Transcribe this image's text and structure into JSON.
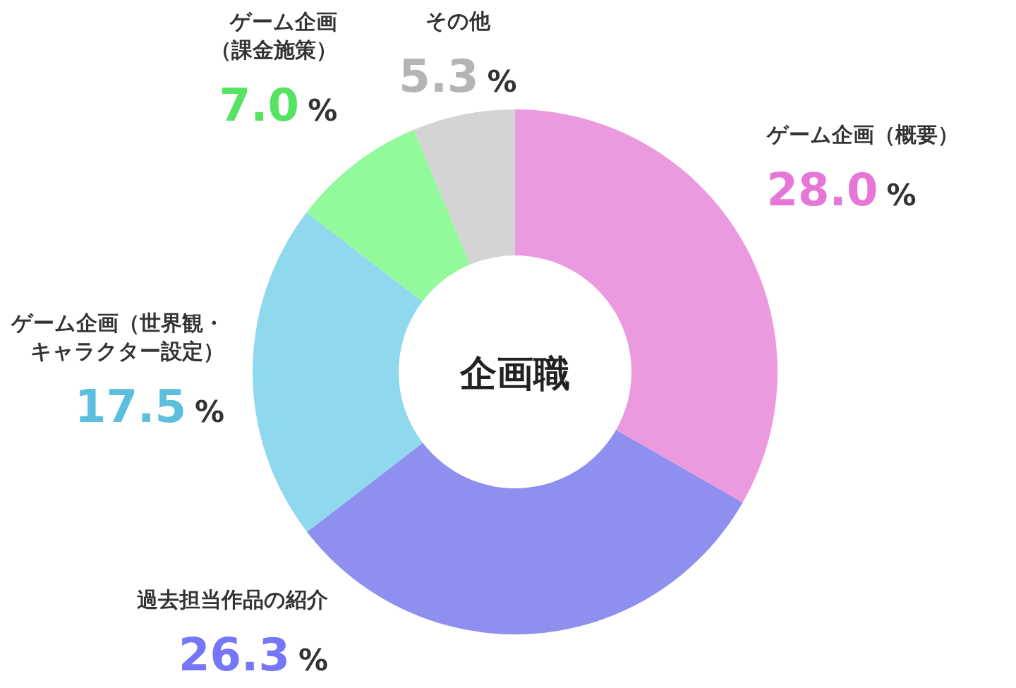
{
  "chart_data": {
    "type": "donut",
    "title": "企画職",
    "categories": [
      "ゲーム企画（概要）",
      "過去担当作品の紹介",
      "ゲーム企画（世界観・キャラクター設定）",
      "ゲーム企画（課金施策）",
      "その他"
    ],
    "values": [
      28.0,
      26.3,
      17.5,
      7.0,
      5.3
    ],
    "colors": [
      "#ec9ae0",
      "#8f8fef",
      "#8fd8ee",
      "#92fa9a",
      "#d4d4d4"
    ],
    "value_labels": [
      "28.0 %",
      "26.3 %",
      "17.5 %",
      "7.0 %",
      "5.3 %"
    ]
  }
}
